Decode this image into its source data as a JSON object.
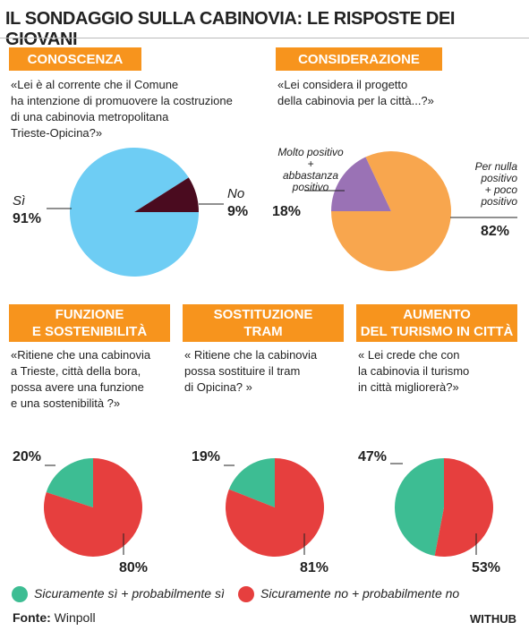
{
  "title": "IL SONDAGGIO SULLA CABINOVIA: LE RISPOSTE DEI GIOVANI",
  "chart_data": [
    {
      "type": "pie",
      "title": "CONOSCENZA",
      "subtitle": "«Lei è al corrente che il Comune\nha intenzione di promuovere la costruzione\ndi una cabinovia  metropolitana\nTrieste-Opicina?»",
      "categories": [
        "Sì",
        "No"
      ],
      "values": [
        91,
        9
      ],
      "value_labels": [
        "91%",
        "9%"
      ],
      "colors": [
        "#6ecdf4",
        "#4a0b1f"
      ]
    },
    {
      "type": "pie",
      "title": "CONSIDERAZIONE",
      "subtitle": "«Lei considera il progetto\ndella cabinovia per la città...?»",
      "categories": [
        "Molto positivo\n+\nabbastanza\npositivo",
        "Per nulla\npositivo\n+ poco\npositivo"
      ],
      "values": [
        18,
        82
      ],
      "value_labels": [
        "18%",
        "82%"
      ],
      "colors": [
        "#9a72b5",
        "#f8a64e"
      ]
    },
    {
      "type": "pie",
      "title": "FUNZIONE\nE SOSTENIBILITÀ",
      "subtitle": "«Ritiene che una cabinovia\na Trieste, città della bora,\npossa avere una funzione\ne una sostenibilità ?»",
      "categories": [
        null,
        null
      ],
      "values": [
        20,
        80
      ],
      "value_labels": [
        "20%",
        "80%"
      ],
      "colors": [
        "#3dbd93",
        "#e63f3e"
      ]
    },
    {
      "type": "pie",
      "title": "SOSTITUZIONE\nTRAM",
      "subtitle": "« Ritiene che la cabinovia\npossa sostituire il tram\ndi Opicina? »",
      "categories": [
        null,
        null
      ],
      "values": [
        19,
        81
      ],
      "value_labels": [
        "19%",
        "81%"
      ],
      "colors": [
        "#3dbd93",
        "#e63f3e"
      ]
    },
    {
      "type": "pie",
      "title": "AUMENTO\nDEL TURISMO IN CITTÀ",
      "subtitle": "« Lei crede che con\nla cabinovia il turismo\nin città migliorerà?»",
      "categories": [
        null,
        null
      ],
      "values": [
        47,
        53
      ],
      "value_labels": [
        "47%",
        "53%"
      ],
      "colors": [
        "#3dbd93",
        "#e63f3e"
      ]
    }
  ],
  "legend": [
    {
      "name": "Sicuramente sì + probabilmente sì",
      "color": "#3dbd93"
    },
    {
      "name": "Sicuramente no + probabilmente no",
      "color": "#e63f3e"
    }
  ],
  "source": {
    "label": "Fonte:",
    "name": "Winpoll"
  },
  "brand": "WITHUB"
}
